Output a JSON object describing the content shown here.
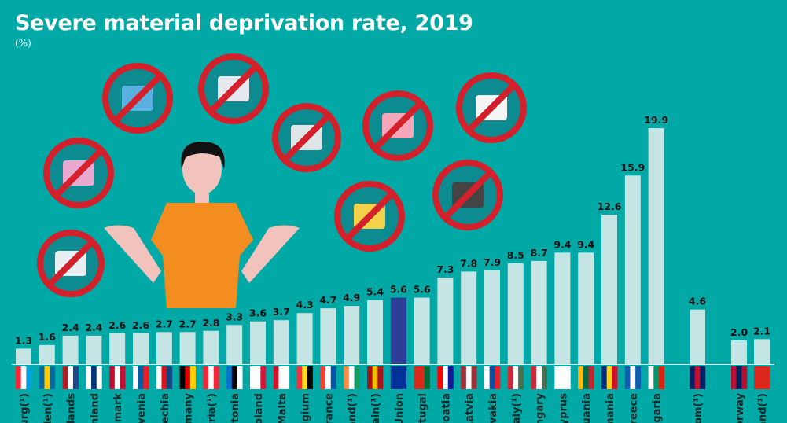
{
  "chart_data": {
    "type": "bar",
    "title": "Severe material deprivation rate, 2019",
    "subtitle": "(%)",
    "ylim": [
      0,
      19.9
    ],
    "grid": false,
    "legend": "none",
    "categories": [
      "urg(¹)",
      "eden(¹)",
      "lands",
      "nland",
      "mark",
      "venia",
      "echia",
      "many",
      "tria(¹)",
      "stonia",
      "oland",
      "Malta",
      "lgium",
      "rance",
      "and(¹)",
      "pain(¹)",
      "Union",
      "rtugal",
      "roatia",
      "Latvia",
      "ovakia",
      "taly(¹)",
      "ngary",
      "yprus",
      "uania",
      "mania",
      "reece",
      "lgaria",
      "dom(¹)",
      "orway",
      "and(¹)"
    ],
    "values": [
      1.3,
      1.6,
      2.4,
      2.4,
      2.6,
      2.6,
      2.7,
      2.7,
      2.8,
      3.3,
      3.6,
      3.7,
      4.3,
      4.7,
      4.9,
      5.4,
      5.6,
      5.6,
      7.3,
      7.8,
      7.9,
      8.5,
      8.7,
      9.4,
      9.4,
      12.6,
      15.9,
      19.9,
      4.6,
      2.0,
      2.1
    ],
    "value_labels": [
      "1.3",
      "1.6",
      "2.4",
      "2.4",
      "2.6",
      "2.6",
      "2.7",
      "2.7",
      "2.8",
      "3.3",
      "3.6",
      "3.7",
      "4.3",
      "4.7",
      "4.9",
      "5.4",
      "5.6",
      "5.6",
      "7.3",
      "7.8",
      "7.9",
      "8.5",
      "8.7",
      "9.4",
      "9.4",
      "12.6",
      "15.9",
      "19.9",
      "4.6",
      "2.0",
      "2.1"
    ],
    "highlight_index": 16
  },
  "colors": {
    "background": "#00a9a6",
    "bar": "#c4e5e3",
    "highlight_bar": "#2c3e97",
    "icon_circle": "#0c8c90",
    "prohibition_red": "#d3202a",
    "shirt": "#f48d1f",
    "skin": "#f2c2bd"
  },
  "icons": [
    "no-washing-machine-icon",
    "no-car-icon",
    "no-tv-icon",
    "no-meal-icon",
    "no-heating-icon",
    "no-savings-icon",
    "no-holiday-icon",
    "no-bills-icon",
    "no-phone-icon",
    "shrugging-person-illustration"
  ]
}
